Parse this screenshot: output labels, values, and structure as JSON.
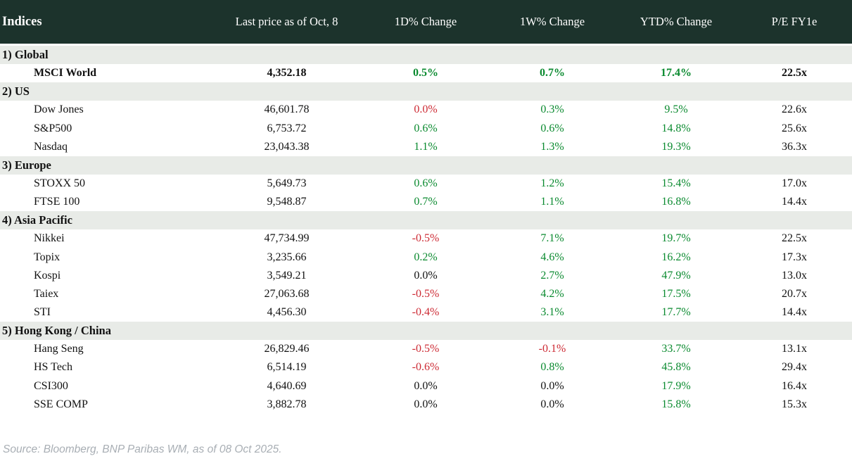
{
  "colors": {
    "header_bg": "#1c332c",
    "section_bg": "#e8ebe7",
    "positive": "#0a8a2f",
    "negative": "#cd2a34",
    "muted": "#a8aeb4"
  },
  "chart_data": {
    "type": "table",
    "title": "Indices",
    "columns": [
      "Indices",
      "Last price as of Oct, 8",
      "1D% Change",
      "1W% Change",
      "YTD% Change",
      "P/E FY1e"
    ],
    "sections": [
      {
        "label": "1) Global",
        "rows": [
          {
            "name": "MSCI World",
            "bold": true,
            "price": "4,352.18",
            "d1": {
              "v": "0.5%",
              "tone": "pos"
            },
            "w1": {
              "v": "0.7%",
              "tone": "pos"
            },
            "ytd": {
              "v": "17.4%",
              "tone": "pos"
            },
            "pe": "22.5x"
          }
        ]
      },
      {
        "label": "2) US",
        "rows": [
          {
            "name": "Dow Jones",
            "bold": false,
            "price": "46,601.78",
            "d1": {
              "v": "0.0%",
              "tone": "neg"
            },
            "w1": {
              "v": "0.3%",
              "tone": "pos"
            },
            "ytd": {
              "v": "9.5%",
              "tone": "pos"
            },
            "pe": "22.6x"
          },
          {
            "name": "S&P500",
            "bold": false,
            "price": "6,753.72",
            "d1": {
              "v": "0.6%",
              "tone": "pos"
            },
            "w1": {
              "v": "0.6%",
              "tone": "pos"
            },
            "ytd": {
              "v": "14.8%",
              "tone": "pos"
            },
            "pe": "25.6x"
          },
          {
            "name": "Nasdaq",
            "bold": false,
            "price": "23,043.38",
            "d1": {
              "v": "1.1%",
              "tone": "pos"
            },
            "w1": {
              "v": "1.3%",
              "tone": "pos"
            },
            "ytd": {
              "v": "19.3%",
              "tone": "pos"
            },
            "pe": "36.3x"
          }
        ]
      },
      {
        "label": "3) Europe",
        "rows": [
          {
            "name": "STOXX 50",
            "bold": false,
            "price": "5,649.73",
            "d1": {
              "v": "0.6%",
              "tone": "pos"
            },
            "w1": {
              "v": "1.2%",
              "tone": "pos"
            },
            "ytd": {
              "v": "15.4%",
              "tone": "pos"
            },
            "pe": "17.0x"
          },
          {
            "name": "FTSE 100",
            "bold": false,
            "price": "9,548.87",
            "d1": {
              "v": "0.7%",
              "tone": "pos"
            },
            "w1": {
              "v": "1.1%",
              "tone": "pos"
            },
            "ytd": {
              "v": "16.8%",
              "tone": "pos"
            },
            "pe": "14.4x"
          }
        ]
      },
      {
        "label": "4) Asia Pacific",
        "rows": [
          {
            "name": "Nikkei",
            "bold": false,
            "price": "47,734.99",
            "d1": {
              "v": "-0.5%",
              "tone": "neg"
            },
            "w1": {
              "v": "7.1%",
              "tone": "pos"
            },
            "ytd": {
              "v": "19.7%",
              "tone": "pos"
            },
            "pe": "22.5x"
          },
          {
            "name": "Topix",
            "bold": false,
            "price": "3,235.66",
            "d1": {
              "v": "0.2%",
              "tone": "pos"
            },
            "w1": {
              "v": "4.6%",
              "tone": "pos"
            },
            "ytd": {
              "v": "16.2%",
              "tone": "pos"
            },
            "pe": "17.3x"
          },
          {
            "name": "Kospi",
            "bold": false,
            "price": "3,549.21",
            "d1": {
              "v": "0.0%",
              "tone": "neu"
            },
            "w1": {
              "v": "2.7%",
              "tone": "pos"
            },
            "ytd": {
              "v": "47.9%",
              "tone": "pos"
            },
            "pe": "13.0x"
          },
          {
            "name": "Taiex",
            "bold": false,
            "price": "27,063.68",
            "d1": {
              "v": "-0.5%",
              "tone": "neg"
            },
            "w1": {
              "v": "4.2%",
              "tone": "pos"
            },
            "ytd": {
              "v": "17.5%",
              "tone": "pos"
            },
            "pe": "20.7x"
          },
          {
            "name": "STI",
            "bold": false,
            "price": "4,456.30",
            "d1": {
              "v": "-0.4%",
              "tone": "neg"
            },
            "w1": {
              "v": "3.1%",
              "tone": "pos"
            },
            "ytd": {
              "v": "17.7%",
              "tone": "pos"
            },
            "pe": "14.4x"
          }
        ]
      },
      {
        "label": "5) Hong Kong / China",
        "rows": [
          {
            "name": "Hang Seng",
            "bold": false,
            "price": "26,829.46",
            "d1": {
              "v": "-0.5%",
              "tone": "neg"
            },
            "w1": {
              "v": "-0.1%",
              "tone": "neg"
            },
            "ytd": {
              "v": "33.7%",
              "tone": "pos"
            },
            "pe": "13.1x"
          },
          {
            "name": "HS Tech",
            "bold": false,
            "price": "6,514.19",
            "d1": {
              "v": "-0.6%",
              "tone": "neg"
            },
            "w1": {
              "v": "0.8%",
              "tone": "pos"
            },
            "ytd": {
              "v": "45.8%",
              "tone": "pos"
            },
            "pe": "29.4x"
          },
          {
            "name": "CSI300",
            "bold": false,
            "price": "4,640.69",
            "d1": {
              "v": "0.0%",
              "tone": "neu"
            },
            "w1": {
              "v": "0.0%",
              "tone": "neu"
            },
            "ytd": {
              "v": "17.9%",
              "tone": "pos"
            },
            "pe": "16.4x"
          },
          {
            "name": "SSE COMP",
            "bold": false,
            "price": "3,882.78",
            "d1": {
              "v": "0.0%",
              "tone": "neu"
            },
            "w1": {
              "v": "0.0%",
              "tone": "neu"
            },
            "ytd": {
              "v": "15.8%",
              "tone": "pos"
            },
            "pe": "15.3x"
          }
        ]
      }
    ],
    "source": "Source: Bloomberg, BNP Paribas WM, as of 08 Oct 2025."
  }
}
